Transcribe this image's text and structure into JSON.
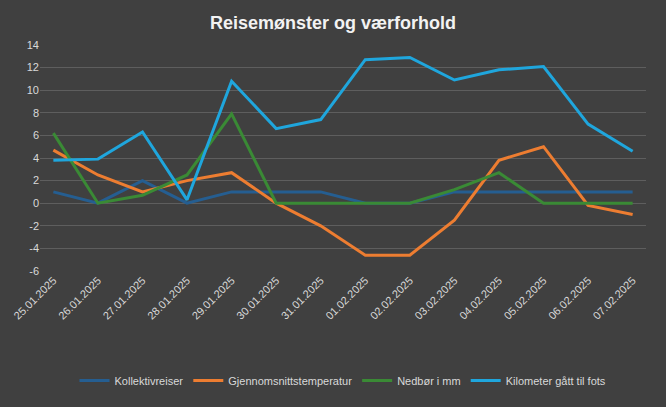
{
  "chart_data": {
    "type": "line",
    "title": "Reisemønster og værforhold",
    "categories": [
      "25.01.2025",
      "26.01.2025",
      "27.01.2025",
      "28.01.2025",
      "29.01.2025",
      "30.01.2025",
      "31.01.2025",
      "01.02.2025",
      "02.02.2025",
      "03.02.2025",
      "04.02.2025",
      "05.02.2025",
      "06.02.2025",
      "07.02.2025"
    ],
    "series": [
      {
        "name": "Kollektivreiser",
        "color": "#255e91",
        "values": [
          1,
          0,
          2,
          0,
          1,
          1,
          1,
          0,
          0,
          1,
          1,
          1,
          1,
          1
        ]
      },
      {
        "name": "Gjennomsnittstemperatur",
        "color": "#ed7d31",
        "values": [
          4.7,
          2.5,
          1.0,
          2.0,
          2.7,
          0,
          -2.0,
          -4.6,
          -4.6,
          -1.5,
          3.8,
          5.0,
          -0.2,
          -1.0
        ]
      },
      {
        "name": "Nedbør i mm",
        "color": "#3a8a35",
        "values": [
          6.2,
          0,
          0.7,
          2.5,
          7.9,
          0,
          0,
          0,
          0,
          1.2,
          2.7,
          0,
          0,
          0
        ]
      },
      {
        "name": "Kilometer gått til fots",
        "color": "#1fa6dd",
        "values": [
          3.8,
          3.9,
          6.3,
          0.3,
          10.8,
          6.6,
          7.4,
          12.7,
          12.9,
          10.9,
          11.8,
          12.1,
          7.0,
          4.6
        ]
      }
    ],
    "ylim": [
      -6,
      14
    ],
    "yticks": [
      -6,
      -4,
      -2,
      0,
      2,
      4,
      6,
      8,
      10,
      12,
      14
    ],
    "grid": true,
    "legend": "bottom"
  }
}
